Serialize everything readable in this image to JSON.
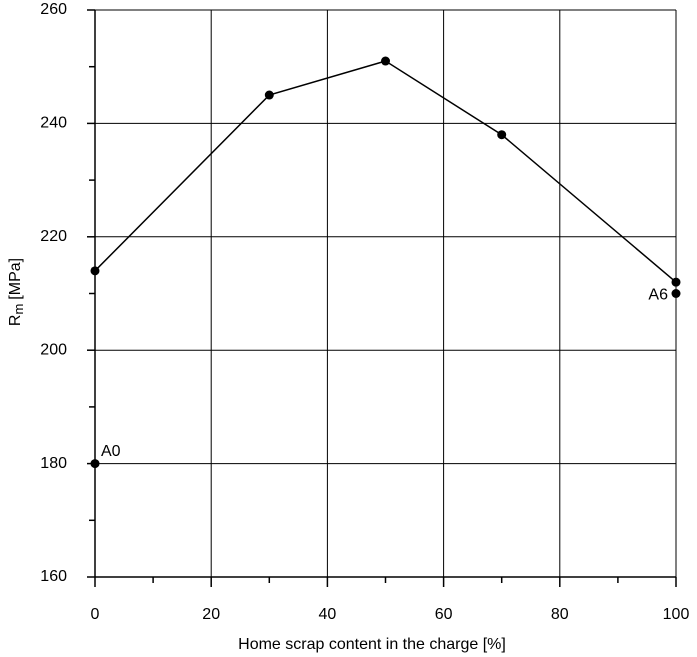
{
  "chart_data": {
    "type": "line",
    "xlabel": "Home scrap content in the charge [%]",
    "ylabel": "R",
    "ylabel_subscript": "m",
    "ylabel_unit": "[MPa]",
    "x": [
      0,
      30,
      50,
      70,
      100
    ],
    "series": [
      {
        "color": "#000000",
        "values": [
          214,
          245,
          251,
          238,
          212
        ]
      }
    ],
    "points": [
      {
        "label": "A0",
        "x": 0,
        "y": 180
      },
      {
        "label": "A6",
        "x": 100,
        "y": 210
      }
    ],
    "xlim": [
      0,
      100
    ],
    "ylim": [
      160,
      260
    ],
    "xticks": [
      0,
      20,
      40,
      60,
      80,
      100
    ],
    "yticks": [
      160,
      180,
      200,
      220,
      240,
      260
    ],
    "xminorticks": [
      10,
      30,
      50,
      70,
      90
    ],
    "yminorticks": [
      170,
      190,
      210,
      230,
      250
    ],
    "grid": true
  }
}
